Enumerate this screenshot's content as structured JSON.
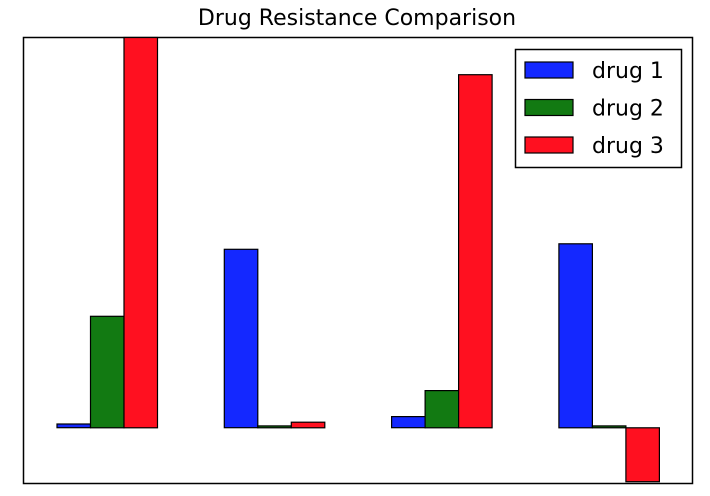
{
  "chart_data": {
    "type": "bar",
    "title": "Drug Resistance Comparison",
    "xlabel": "",
    "ylabel": "",
    "categories": [
      "",
      "",
      "",
      ""
    ],
    "ylim": [
      -0.3,
      2.1
    ],
    "grid": false,
    "axis_ticks_visible": false,
    "legend_position": "top-right",
    "series": [
      {
        "name": "drug 1",
        "color": "#1428ff",
        "values": [
          0.02,
          0.96,
          0.06,
          0.99
        ]
      },
      {
        "name": "drug 2",
        "color": "#127a12",
        "values": [
          0.6,
          0.01,
          0.2,
          0.01
        ]
      },
      {
        "name": "drug 3",
        "color": "#ff1020",
        "values": [
          2.1,
          0.03,
          1.9,
          -0.29
        ]
      }
    ]
  }
}
